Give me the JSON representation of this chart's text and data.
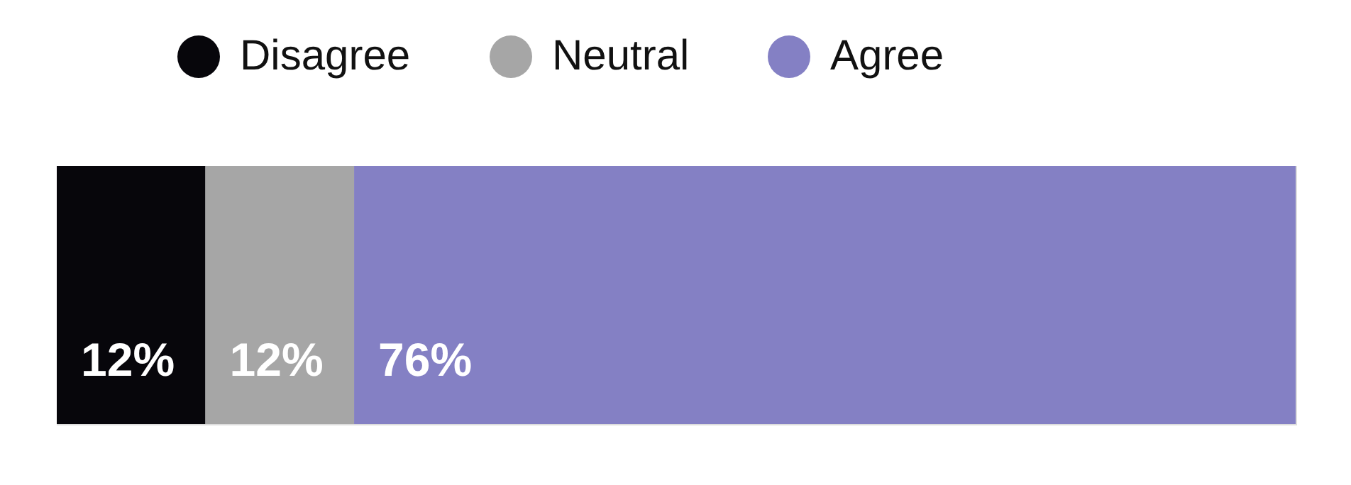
{
  "chart_data": {
    "type": "bar",
    "orientation": "horizontal",
    "stacked": true,
    "categories": [
      null
    ],
    "series": [
      {
        "name": "Disagree",
        "color": "#07060b",
        "values": [
          12
        ],
        "value_labels": [
          "12%"
        ]
      },
      {
        "name": "Neutral",
        "color": "#a6a6a6",
        "values": [
          12
        ],
        "value_labels": [
          "12%"
        ]
      },
      {
        "name": "Agree",
        "color": "#8480c4",
        "values": [
          76
        ],
        "value_labels": [
          "76%"
        ]
      }
    ],
    "xlim": [
      0,
      100
    ],
    "tick_labels": false,
    "legend": "top"
  }
}
